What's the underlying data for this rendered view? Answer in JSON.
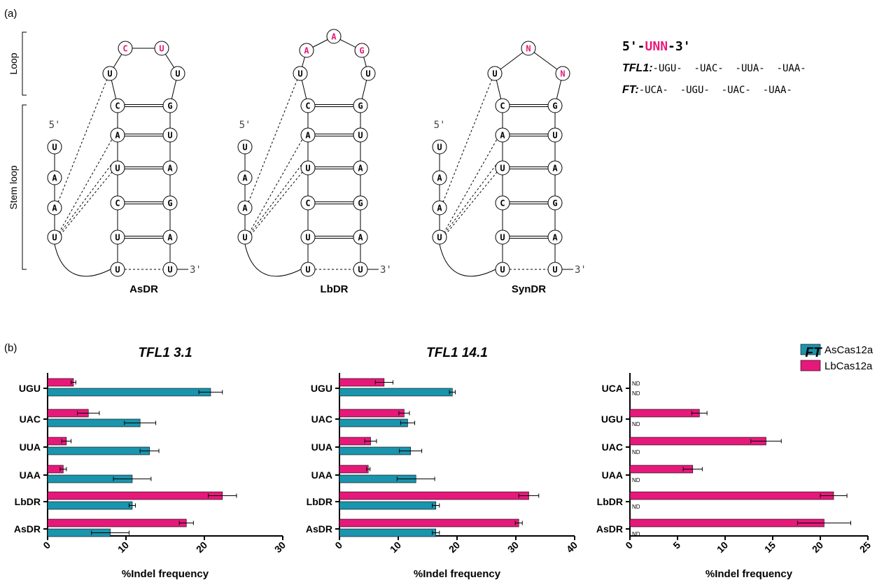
{
  "panel_labels": {
    "a": "(a)",
    "b": "(b)"
  },
  "panel_a": {
    "loop_label": "Loop",
    "stem_loop_label": "Stem loop",
    "five_prime": "5'",
    "three_prime": "3'",
    "pink_color": "#e6197a",
    "diagrams": [
      {
        "name": "AsDR",
        "loop": [
          "U",
          "C",
          "U",
          "U"
        ],
        "loop_pink": [
          false,
          true,
          true,
          false
        ]
      },
      {
        "name": "LbDR",
        "loop": [
          "U",
          "A",
          "A",
          "G",
          "U"
        ],
        "loop_pink": [
          false,
          true,
          true,
          true,
          false
        ]
      },
      {
        "name": "SynDR",
        "loop": [
          "U",
          "N",
          "N"
        ],
        "loop_pink": [
          false,
          true,
          true
        ]
      }
    ],
    "stem_left": [
      "C",
      "A",
      "U",
      "C",
      "U"
    ],
    "stem_right": [
      "G",
      "U",
      "A",
      "G",
      "A"
    ],
    "strand": [
      "U",
      "A",
      "A",
      "U"
    ],
    "bottom": [
      "U",
      "U"
    ],
    "motif": {
      "prefix": "5'-",
      "u": "U",
      "nn": "NN",
      "suffix": "-3'"
    },
    "tfl1_label": "TFL1:",
    "tfl1_seqs": "-UGU-  -UAC-  -UUA-  -UAA-",
    "ft_label": "FT:",
    "ft_seqs": "-UCA-  -UGU-  -UAC-  -UAA-"
  },
  "legend": [
    {
      "name": "AsCas12a",
      "color": "#1b94ad"
    },
    {
      "name": "LbCas12a",
      "color": "#e6197a"
    }
  ],
  "chart_data": [
    {
      "type": "bar",
      "title": "TFL1 3.1",
      "xlabel": "%Indel frequency",
      "categories": [
        "UGU",
        "UAC",
        "UUA",
        "UAA",
        "LbDR",
        "AsDR"
      ],
      "xlim": [
        0,
        30
      ],
      "ticks": [
        0,
        10,
        20,
        30
      ],
      "series": [
        {
          "name": "AsCas12a",
          "values": [
            20.8,
            11.8,
            13.0,
            10.8,
            10.8,
            8.0
          ],
          "errors": [
            1.5,
            2.0,
            1.2,
            2.4,
            0.4,
            2.4
          ]
        },
        {
          "name": "LbCas12a",
          "values": [
            3.3,
            5.2,
            2.4,
            2.0,
            22.3,
            17.7
          ],
          "errors": [
            0.3,
            1.4,
            0.6,
            0.4,
            1.8,
            0.9
          ]
        }
      ],
      "nd": [
        [],
        []
      ]
    },
    {
      "type": "bar",
      "title": "TFL1 14.1",
      "xlabel": "%Indel frequency",
      "categories": [
        "UGU",
        "UAC",
        "UUA",
        "UAA",
        "LbDR",
        "AsDR"
      ],
      "xlim": [
        0,
        40
      ],
      "ticks": [
        0,
        10,
        20,
        30,
        40
      ],
      "series": [
        {
          "name": "AsCas12a",
          "values": [
            19.2,
            11.6,
            12.1,
            13.0,
            16.4,
            16.4
          ],
          "errors": [
            0.5,
            1.2,
            1.9,
            3.2,
            0.6,
            0.6
          ]
        },
        {
          "name": "LbCas12a",
          "values": [
            7.6,
            11.0,
            5.3,
            4.9,
            32.2,
            30.5
          ],
          "errors": [
            1.5,
            0.9,
            1.0,
            0.3,
            1.7,
            0.6
          ]
        }
      ],
      "nd": [
        [],
        []
      ]
    },
    {
      "type": "bar",
      "title": "FT",
      "xlabel": "%Indel frequency",
      "categories": [
        "UCA",
        "UGU",
        "UAC",
        "UAA",
        "LbDR",
        "AsDR"
      ],
      "xlim": [
        0,
        25
      ],
      "ticks": [
        0,
        5,
        10,
        15,
        20,
        25
      ],
      "series": [
        {
          "name": "AsCas12a",
          "values": [
            0,
            0,
            0,
            0,
            0,
            0
          ],
          "errors": [
            0,
            0,
            0,
            0,
            0,
            0
          ]
        },
        {
          "name": "LbCas12a",
          "values": [
            0,
            7.3,
            14.3,
            6.6,
            21.4,
            20.4
          ],
          "errors": [
            0,
            0.8,
            1.6,
            1.0,
            1.4,
            2.8
          ]
        }
      ],
      "nd_label": "ND",
      "nd": [
        [
          0,
          1,
          2,
          3,
          4,
          5
        ],
        [
          0
        ]
      ]
    }
  ]
}
